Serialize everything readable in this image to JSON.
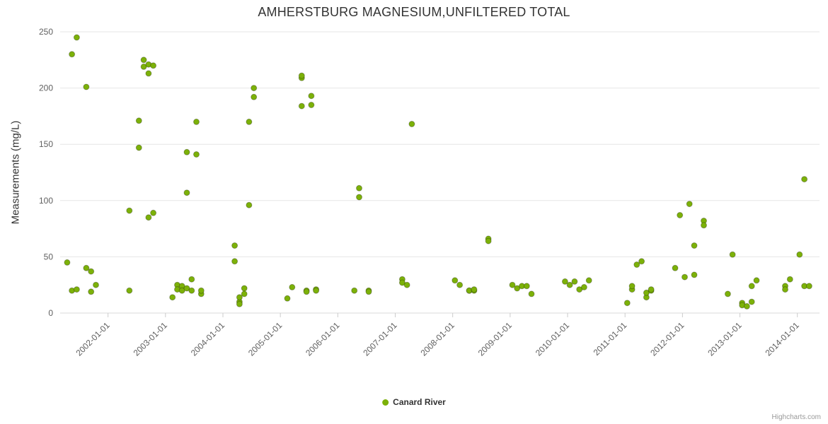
{
  "credits": "Highcharts.com",
  "chart_data": {
    "type": "scatter",
    "title": "AMHERSTBURG MAGNESIUM,UNFILTERED TOTAL",
    "xlabel": "",
    "ylabel": "Measurements (mg/L)",
    "ylim": [
      0,
      250
    ],
    "yticks": [
      0,
      50,
      100,
      150,
      200,
      250
    ],
    "x_range": [
      "2001-03-01",
      "2014-05-20"
    ],
    "xticks": [
      "2002-01-01",
      "2003-01-01",
      "2004-01-01",
      "2005-01-01",
      "2006-01-01",
      "2007-01-01",
      "2008-01-01",
      "2009-01-01",
      "2010-01-01",
      "2011-01-01",
      "2012-01-01",
      "2013-01-01",
      "2014-01-01"
    ],
    "grid": "horizontal",
    "legend_position": "bottom",
    "series": [
      {
        "name": "Canard River",
        "color": "#7cb109",
        "points": [
          [
            "2001-04",
            45
          ],
          [
            "2001-05",
            230
          ],
          [
            "2001-05",
            20
          ],
          [
            "2001-06",
            245
          ],
          [
            "2001-06",
            21
          ],
          [
            "2001-08",
            201
          ],
          [
            "2001-08",
            40
          ],
          [
            "2001-09",
            37
          ],
          [
            "2001-09",
            19
          ],
          [
            "2001-10",
            25
          ],
          [
            "2002-05",
            20
          ],
          [
            "2002-05",
            91
          ],
          [
            "2002-07",
            147
          ],
          [
            "2002-07",
            171
          ],
          [
            "2002-08",
            225
          ],
          [
            "2002-08",
            219
          ],
          [
            "2002-09",
            213
          ],
          [
            "2002-09",
            221
          ],
          [
            "2002-10",
            220
          ],
          [
            "2002-09",
            85
          ],
          [
            "2002-10",
            89
          ],
          [
            "2003-02",
            14
          ],
          [
            "2003-03",
            25
          ],
          [
            "2003-03",
            21
          ],
          [
            "2003-04",
            24
          ],
          [
            "2003-04",
            20
          ],
          [
            "2003-05",
            22
          ],
          [
            "2003-05",
            107
          ],
          [
            "2003-05",
            143
          ],
          [
            "2003-06",
            30
          ],
          [
            "2003-06",
            20
          ],
          [
            "2003-07",
            170
          ],
          [
            "2003-07",
            141
          ],
          [
            "2003-08",
            17
          ],
          [
            "2003-08",
            20
          ],
          [
            "2004-03",
            60
          ],
          [
            "2004-03",
            46
          ],
          [
            "2004-04",
            10
          ],
          [
            "2004-04",
            8
          ],
          [
            "2004-04",
            14
          ],
          [
            "2004-05",
            22
          ],
          [
            "2004-05",
            17
          ],
          [
            "2004-06",
            170
          ],
          [
            "2004-06",
            96
          ],
          [
            "2004-07",
            200
          ],
          [
            "2004-07",
            192
          ],
          [
            "2005-02",
            13
          ],
          [
            "2005-03",
            23
          ],
          [
            "2005-05",
            209
          ],
          [
            "2005-05",
            211
          ],
          [
            "2005-05",
            184
          ],
          [
            "2005-06",
            20
          ],
          [
            "2005-06",
            19
          ],
          [
            "2005-07",
            193
          ],
          [
            "2005-07",
            185
          ],
          [
            "2005-08",
            21
          ],
          [
            "2005-08",
            20
          ],
          [
            "2006-04",
            20
          ],
          [
            "2006-05",
            111
          ],
          [
            "2006-05",
            103
          ],
          [
            "2006-07",
            20
          ],
          [
            "2006-07",
            19
          ],
          [
            "2007-02",
            30
          ],
          [
            "2007-02",
            27
          ],
          [
            "2007-03",
            25
          ],
          [
            "2007-04",
            168
          ],
          [
            "2008-01",
            29
          ],
          [
            "2008-02",
            25
          ],
          [
            "2008-04",
            20
          ],
          [
            "2008-04",
            20
          ],
          [
            "2008-05",
            20
          ],
          [
            "2008-05",
            21
          ],
          [
            "2008-08",
            66
          ],
          [
            "2008-08",
            64
          ],
          [
            "2009-01",
            25
          ],
          [
            "2009-02",
            22
          ],
          [
            "2009-03",
            24
          ],
          [
            "2009-04",
            24
          ],
          [
            "2009-05",
            17
          ],
          [
            "2009-12",
            28
          ],
          [
            "2010-01",
            25
          ],
          [
            "2010-02",
            28
          ],
          [
            "2010-03",
            21
          ],
          [
            "2010-04",
            23
          ],
          [
            "2010-05",
            29
          ],
          [
            "2011-01",
            9
          ],
          [
            "2011-02",
            21
          ],
          [
            "2011-02",
            24
          ],
          [
            "2011-03",
            43
          ],
          [
            "2011-04",
            46
          ],
          [
            "2011-05",
            14
          ],
          [
            "2011-05",
            18
          ],
          [
            "2011-06",
            20
          ],
          [
            "2011-06",
            21
          ],
          [
            "2011-11",
            40
          ],
          [
            "2011-12",
            87
          ],
          [
            "2012-01",
            32
          ],
          [
            "2012-02",
            97
          ],
          [
            "2012-03",
            34
          ],
          [
            "2012-03",
            60
          ],
          [
            "2012-05",
            82
          ],
          [
            "2012-05",
            78
          ],
          [
            "2012-10",
            17
          ],
          [
            "2012-11",
            52
          ],
          [
            "2013-01",
            9
          ],
          [
            "2013-01",
            7
          ],
          [
            "2013-02",
            6
          ],
          [
            "2013-03",
            24
          ],
          [
            "2013-03",
            10
          ],
          [
            "2013-04",
            29
          ],
          [
            "2013-10",
            24
          ],
          [
            "2013-10",
            21
          ],
          [
            "2013-11",
            30
          ],
          [
            "2014-01",
            52
          ],
          [
            "2014-02",
            24
          ],
          [
            "2014-02",
            119
          ],
          [
            "2014-03",
            24
          ]
        ]
      }
    ]
  }
}
